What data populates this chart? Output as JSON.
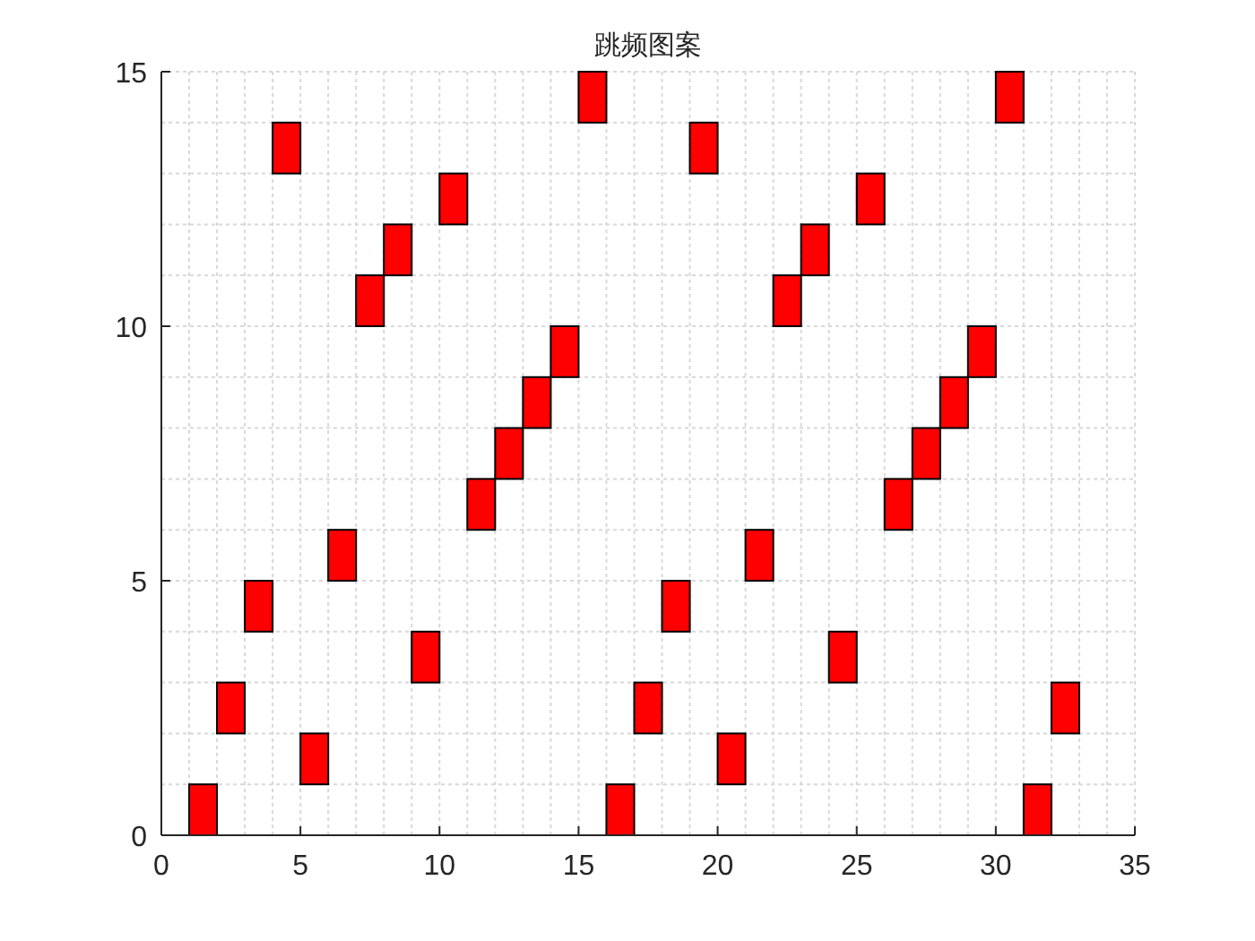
{
  "chart_data": {
    "type": "bar",
    "title": "跳频图案",
    "x": [
      1.5,
      2.5,
      3.5,
      4.5,
      5.5,
      6.5,
      7.5,
      8.5,
      9.5,
      10.5,
      11.5,
      12.5,
      13.5,
      14.5,
      15.5,
      16.5,
      17.5,
      18.5,
      19.5,
      20.5,
      21.5,
      22.5,
      23.5,
      24.5,
      25.5,
      26.5,
      27.5,
      28.5,
      29.5,
      30.5,
      31.5,
      32.5
    ],
    "base": [
      0,
      2,
      4,
      13,
      1,
      5,
      10,
      11,
      3,
      12,
      6,
      7,
      8,
      9,
      14,
      0,
      2,
      4,
      13,
      1,
      5,
      10,
      11,
      3,
      12,
      6,
      7,
      8,
      9,
      14,
      0,
      2
    ],
    "values": [
      1,
      1,
      1,
      1,
      1,
      1,
      1,
      1,
      1,
      1,
      1,
      1,
      1,
      1,
      1,
      1,
      1,
      1,
      1,
      1,
      1,
      1,
      1,
      1,
      1,
      1,
      1,
      1,
      1,
      1,
      1,
      1
    ],
    "color": "#ff0000",
    "xlim": [
      0,
      35
    ],
    "ylim": [
      0,
      15
    ],
    "xticks": [
      0,
      5,
      10,
      15,
      20,
      25,
      30,
      35
    ],
    "yticks": [
      0,
      5,
      10,
      15
    ],
    "grid": true
  }
}
